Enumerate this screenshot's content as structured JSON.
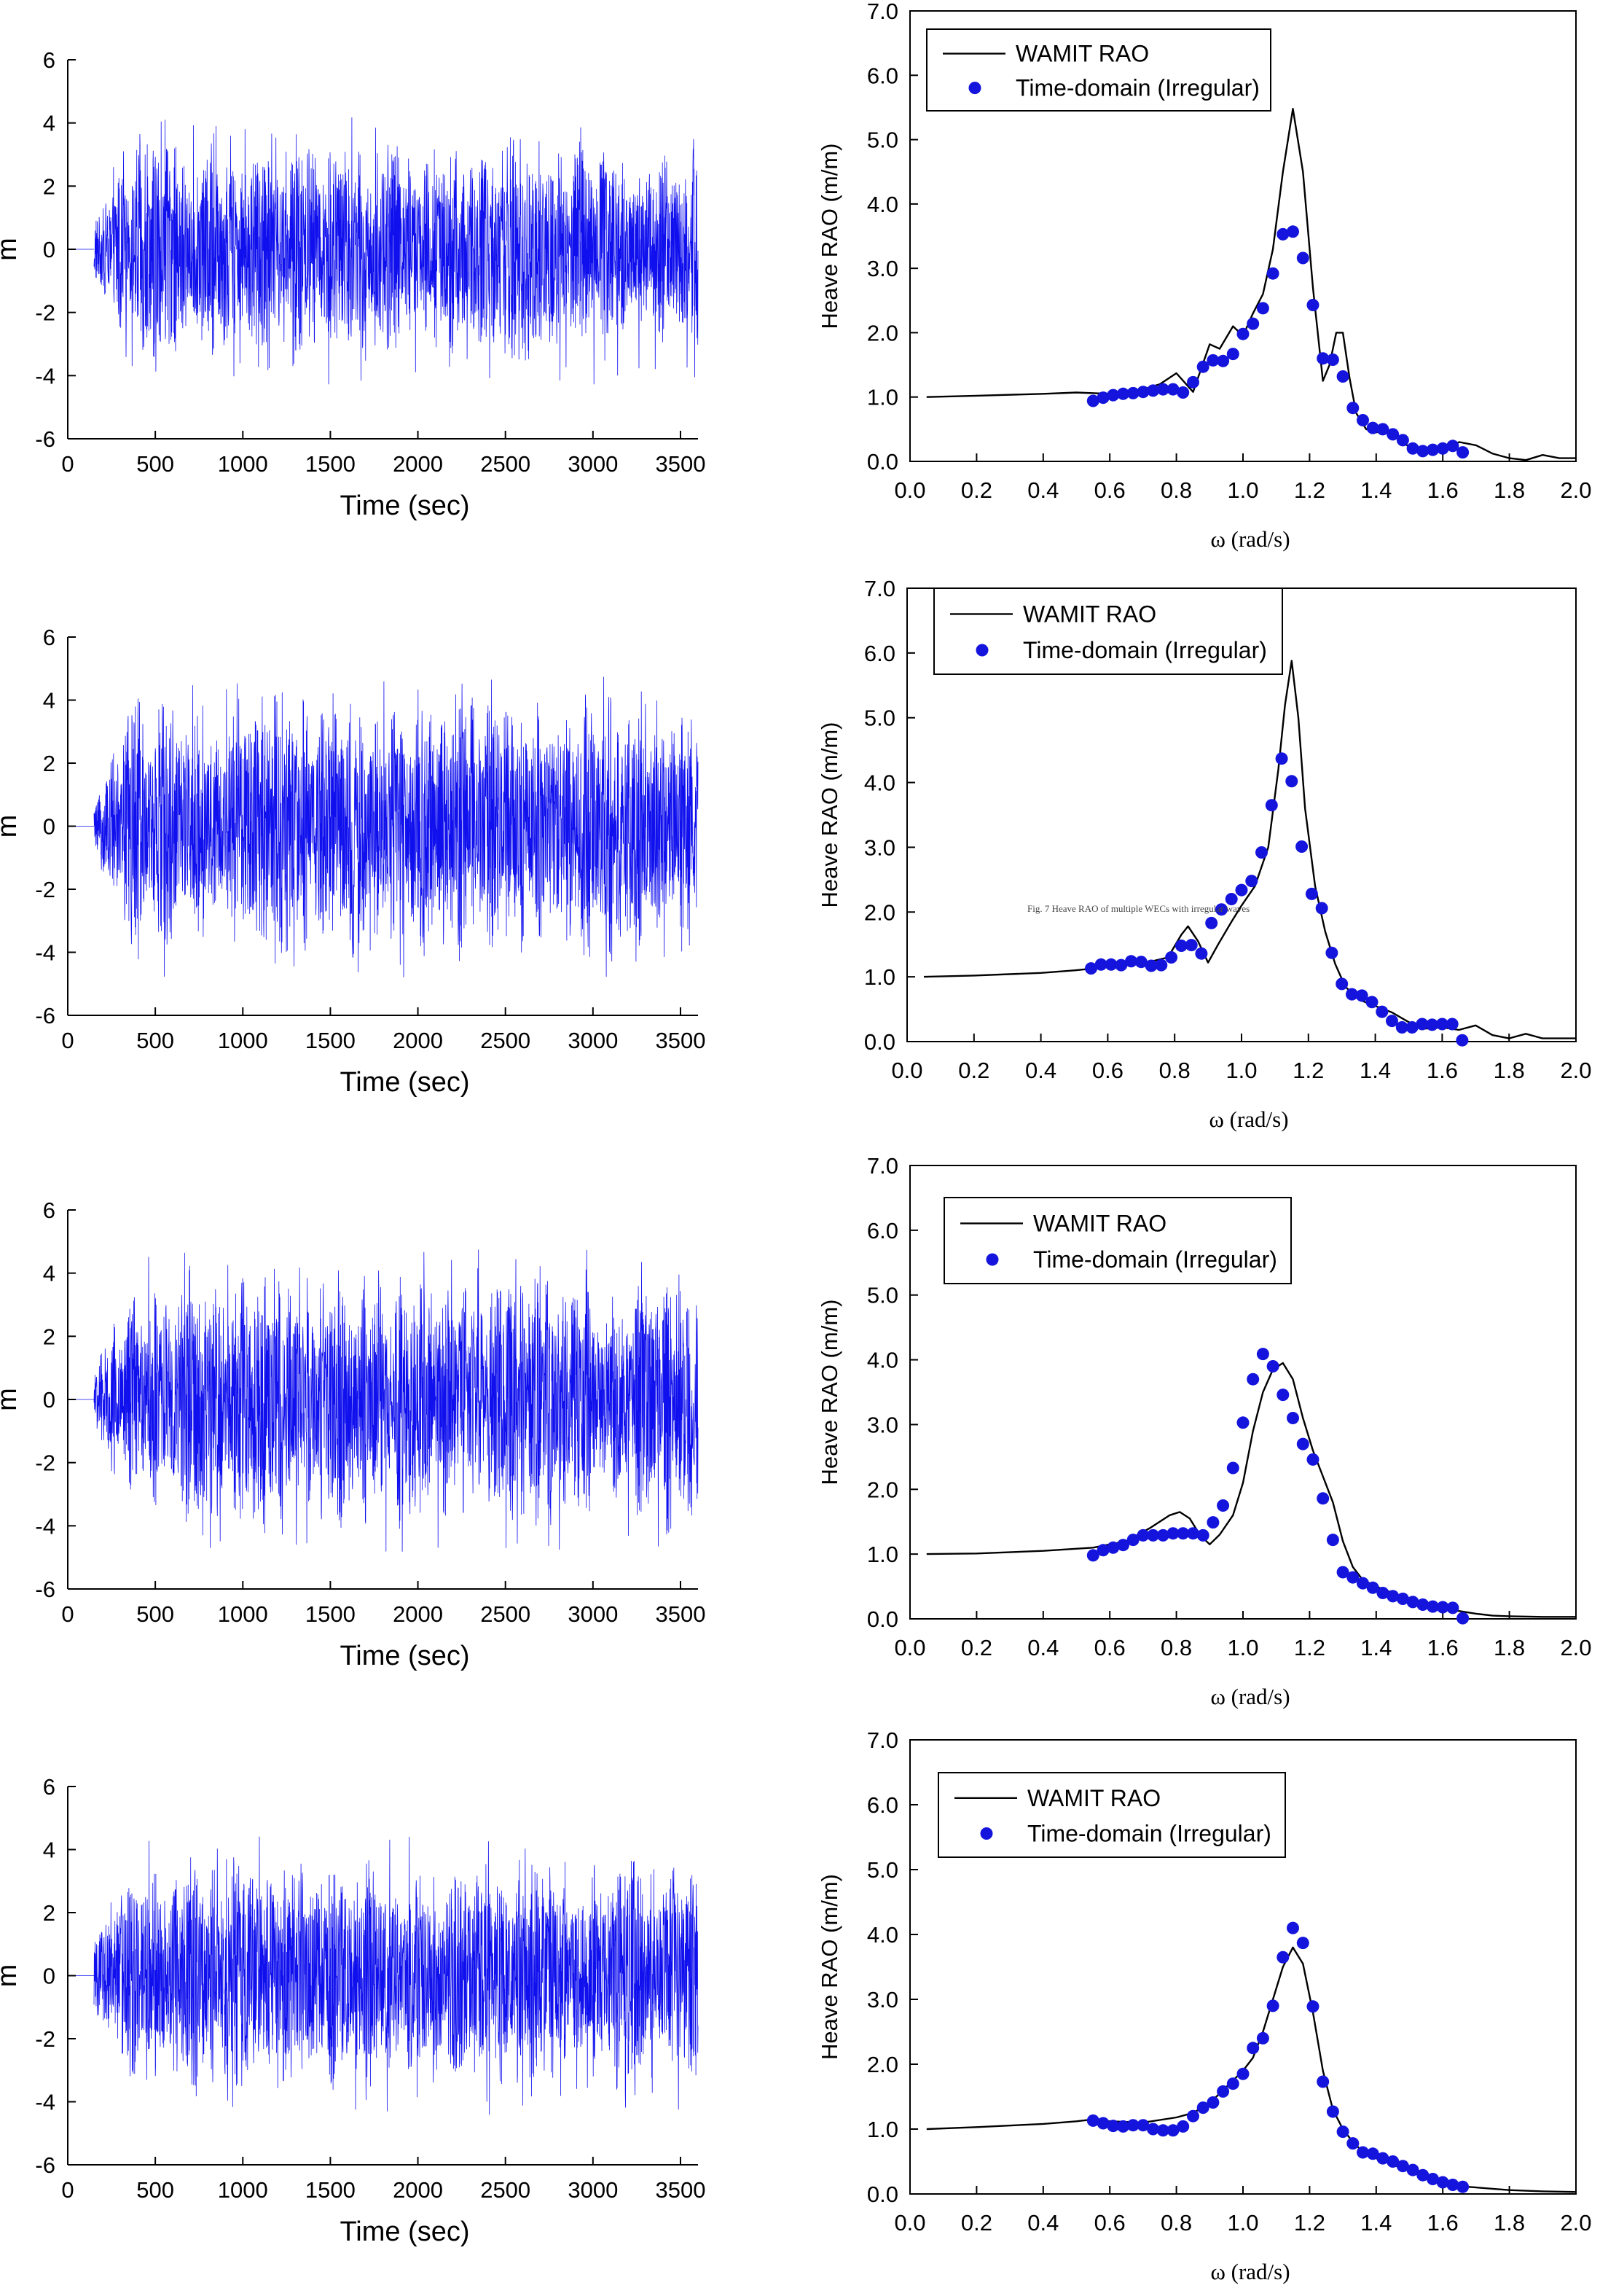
{
  "colors": {
    "time_series": "#1010ee",
    "rao_points": "#1414dd",
    "rao_line": "#000000",
    "axis": "#000000"
  },
  "overlay_caption": "Fig. 7 Heave RAO of multiple WECs with irregular waves",
  "chart_data": [
    {
      "type": "line",
      "panel": "time-series-1",
      "xlabel": "Time (sec)",
      "ylabel": "m",
      "xlim": [
        0,
        3600
      ],
      "ylim": [
        -6,
        6
      ],
      "xticks": [
        "0",
        "500",
        "1000",
        "1500",
        "2000",
        "2500",
        "3000",
        "3500"
      ],
      "yticks": [
        "6",
        "4",
        "2",
        "0",
        "-2",
        "-4",
        "-6"
      ],
      "amplitude_envelope": {
        "typical_peak": 3.8,
        "max_peak": 4.4,
        "min_trough": -4.3
      },
      "dense_signal": true
    },
    {
      "type": "line",
      "panel": "time-series-2",
      "xlabel": "Time (sec)",
      "ylabel": "m",
      "xlim": [
        0,
        3600
      ],
      "ylim": [
        -6,
        6
      ],
      "xticks": [
        "0",
        "500",
        "1000",
        "1500",
        "2000",
        "2500",
        "3000",
        "3500"
      ],
      "yticks": [
        "6",
        "4",
        "2",
        "0",
        "-2",
        "-4",
        "-6"
      ],
      "amplitude_envelope": {
        "typical_peak": 4.3,
        "max_peak": 5.1,
        "min_trough": -4.8
      },
      "dense_signal": true
    },
    {
      "type": "line",
      "panel": "time-series-3",
      "xlabel": "Time (sec)",
      "ylabel": "m",
      "xlim": [
        0,
        3600
      ],
      "ylim": [
        -6,
        6
      ],
      "xticks": [
        "0",
        "500",
        "1000",
        "1500",
        "2000",
        "2500",
        "3000",
        "3500"
      ],
      "yticks": [
        "6",
        "4",
        "2",
        "0",
        "-2",
        "-4",
        "-6"
      ],
      "amplitude_envelope": {
        "typical_peak": 4.2,
        "max_peak": 4.9,
        "min_trough": -5.1
      },
      "dense_signal": true
    },
    {
      "type": "line",
      "panel": "time-series-4",
      "xlabel": "Time (sec)",
      "ylabel": "m",
      "xlim": [
        0,
        3600
      ],
      "ylim": [
        -6,
        6
      ],
      "xticks": [
        "0",
        "500",
        "1000",
        "1500",
        "2000",
        "2500",
        "3000",
        "3500"
      ],
      "yticks": [
        "6",
        "4",
        "2",
        "0",
        "-2",
        "-4",
        "-6"
      ],
      "amplitude_envelope": {
        "typical_peak": 3.9,
        "max_peak": 4.9,
        "min_trough": -5.2
      },
      "dense_signal": true
    },
    {
      "type": "line",
      "panel": "rao-1",
      "xlabel": "ω (rad/s)",
      "ylabel": "Heave RAO (m/m)",
      "xlim": [
        0,
        2.0
      ],
      "ylim": [
        0,
        7.0
      ],
      "xticks": [
        "0.0",
        "0.2",
        "0.4",
        "0.6",
        "0.8",
        "1.0",
        "1.2",
        "1.4",
        "1.6",
        "1.8",
        "2.0"
      ],
      "yticks": [
        "0.0",
        "1.0",
        "2.0",
        "3.0",
        "4.0",
        "5.0",
        "6.0",
        "7.0"
      ],
      "legend": [
        "WAMIT RAO",
        "Time-domain (Irregular)"
      ],
      "legend_position": "top-left",
      "series": [
        {
          "name": "WAMIT RAO",
          "style": "line",
          "x": [
            0.05,
            0.2,
            0.4,
            0.5,
            0.6,
            0.7,
            0.75,
            0.8,
            0.85,
            0.9,
            0.93,
            0.97,
            1.0,
            1.03,
            1.06,
            1.09,
            1.12,
            1.15,
            1.18,
            1.21,
            1.24,
            1.26,
            1.28,
            1.3,
            1.32,
            1.34,
            1.37,
            1.4,
            1.43,
            1.46,
            1.5,
            1.55,
            1.6,
            1.65,
            1.7,
            1.75,
            1.8,
            1.85,
            1.9,
            1.95,
            2.0
          ],
          "y": [
            1.0,
            1.02,
            1.05,
            1.07,
            1.05,
            1.12,
            1.2,
            1.37,
            1.08,
            1.82,
            1.75,
            2.1,
            1.95,
            2.3,
            2.6,
            3.3,
            4.5,
            5.48,
            4.5,
            2.7,
            1.25,
            1.5,
            2.0,
            2.0,
            1.3,
            0.75,
            0.5,
            0.45,
            0.5,
            0.38,
            0.22,
            0.18,
            0.2,
            0.3,
            0.25,
            0.12,
            0.05,
            0.02,
            0.1,
            0.05,
            0.05
          ]
        },
        {
          "name": "Time-domain (Irregular)",
          "style": "points",
          "x": [
            0.55,
            0.58,
            0.61,
            0.64,
            0.67,
            0.7,
            0.73,
            0.76,
            0.79,
            0.82,
            0.85,
            0.88,
            0.91,
            0.94,
            0.97,
            1.0,
            1.03,
            1.06,
            1.09,
            1.12,
            1.15,
            1.18,
            1.21,
            1.24,
            1.27,
            1.3,
            1.33,
            1.36,
            1.39,
            1.42,
            1.45,
            1.48,
            1.51,
            1.54,
            1.57,
            1.6,
            1.63,
            1.66
          ],
          "y": [
            0.94,
            0.99,
            1.03,
            1.05,
            1.06,
            1.08,
            1.1,
            1.12,
            1.12,
            1.07,
            1.23,
            1.47,
            1.57,
            1.56,
            1.67,
            1.98,
            2.14,
            2.38,
            2.92,
            3.53,
            3.57,
            3.16,
            2.43,
            1.6,
            1.58,
            1.32,
            0.83,
            0.64,
            0.52,
            0.5,
            0.42,
            0.33,
            0.2,
            0.16,
            0.18,
            0.2,
            0.24,
            0.14
          ]
        }
      ]
    },
    {
      "type": "line",
      "panel": "rao-2",
      "xlabel": "ω (rad/s)",
      "ylabel": "Heave RAO (m/m)",
      "xlim": [
        0,
        2.0
      ],
      "ylim": [
        0,
        7.0
      ],
      "xticks": [
        "0.0",
        "0.2",
        "0.4",
        "0.6",
        "0.8",
        "1.0",
        "1.2",
        "1.4",
        "1.6",
        "1.8",
        "2.0"
      ],
      "yticks": [
        "0.0",
        "1.0",
        "2.0",
        "3.0",
        "4.0",
        "5.0",
        "6.0",
        "7.0"
      ],
      "legend": [
        "WAMIT RAO",
        "Time-domain (Irregular)"
      ],
      "legend_position": "top-left",
      "series": [
        {
          "name": "WAMIT RAO",
          "style": "line",
          "x": [
            0.05,
            0.2,
            0.4,
            0.5,
            0.6,
            0.7,
            0.78,
            0.82,
            0.84,
            0.87,
            0.9,
            0.93,
            0.97,
            1.0,
            1.04,
            1.08,
            1.11,
            1.13,
            1.15,
            1.17,
            1.19,
            1.22,
            1.25,
            1.28,
            1.31,
            1.35,
            1.4,
            1.45,
            1.5,
            1.55,
            1.6,
            1.65,
            1.7,
            1.75,
            1.8,
            1.85,
            1.9,
            2.0
          ],
          "y": [
            1.0,
            1.02,
            1.06,
            1.1,
            1.15,
            1.2,
            1.3,
            1.65,
            1.78,
            1.55,
            1.22,
            1.5,
            1.85,
            2.1,
            2.4,
            3.0,
            4.2,
            5.2,
            5.88,
            5.0,
            3.6,
            2.4,
            1.7,
            1.2,
            0.85,
            0.65,
            0.55,
            0.45,
            0.3,
            0.2,
            0.22,
            0.18,
            0.25,
            0.1,
            0.05,
            0.12,
            0.05,
            0.05
          ]
        },
        {
          "name": "Time-domain (Irregular)",
          "style": "points",
          "x": [
            0.55,
            0.58,
            0.61,
            0.64,
            0.67,
            0.7,
            0.73,
            0.76,
            0.79,
            0.82,
            0.85,
            0.88,
            0.91,
            0.94,
            0.97,
            1.0,
            1.03,
            1.06,
            1.09,
            1.12,
            1.15,
            1.18,
            1.21,
            1.24,
            1.27,
            1.3,
            1.33,
            1.36,
            1.39,
            1.42,
            1.45,
            1.48,
            1.51,
            1.54,
            1.57,
            1.6,
            1.63,
            1.66
          ],
          "y": [
            1.13,
            1.19,
            1.19,
            1.18,
            1.24,
            1.23,
            1.17,
            1.18,
            1.3,
            1.48,
            1.49,
            1.36,
            1.83,
            2.04,
            2.2,
            2.34,
            2.48,
            2.92,
            3.65,
            4.37,
            4.02,
            3.01,
            2.28,
            2.06,
            1.37,
            0.89,
            0.73,
            0.71,
            0.61,
            0.46,
            0.32,
            0.22,
            0.22,
            0.27,
            0.26,
            0.27,
            0.27,
            0.02
          ]
        }
      ]
    },
    {
      "type": "line",
      "panel": "rao-3",
      "xlabel": "ω (rad/s)",
      "ylabel": "Heave RAO (m/m)",
      "xlim": [
        0,
        2.0
      ],
      "ylim": [
        0,
        7.0
      ],
      "xticks": [
        "0.0",
        "0.2",
        "0.4",
        "0.6",
        "0.8",
        "1.0",
        "1.2",
        "1.4",
        "1.6",
        "1.8",
        "2.0"
      ],
      "yticks": [
        "0.0",
        "1.0",
        "2.0",
        "3.0",
        "4.0",
        "5.0",
        "6.0",
        "7.0"
      ],
      "legend": [
        "WAMIT RAO",
        "Time-domain (Irregular)"
      ],
      "legend_position": "top-left",
      "series": [
        {
          "name": "WAMIT RAO",
          "style": "line",
          "x": [
            0.05,
            0.2,
            0.4,
            0.55,
            0.65,
            0.72,
            0.78,
            0.81,
            0.84,
            0.87,
            0.9,
            0.93,
            0.97,
            1.0,
            1.03,
            1.06,
            1.09,
            1.12,
            1.15,
            1.18,
            1.21,
            1.24,
            1.27,
            1.3,
            1.33,
            1.36,
            1.4,
            1.45,
            1.5,
            1.55,
            1.6,
            1.65,
            1.7,
            1.75,
            1.8,
            1.9,
            2.0
          ],
          "y": [
            1.0,
            1.01,
            1.05,
            1.1,
            1.2,
            1.4,
            1.6,
            1.65,
            1.55,
            1.3,
            1.15,
            1.3,
            1.6,
            2.1,
            2.9,
            3.5,
            3.85,
            3.95,
            3.7,
            3.1,
            2.6,
            2.2,
            1.8,
            1.2,
            0.8,
            0.6,
            0.5,
            0.4,
            0.3,
            0.2,
            0.15,
            0.12,
            0.08,
            0.05,
            0.04,
            0.03,
            0.03
          ]
        },
        {
          "name": "Time-domain (Irregular)",
          "style": "points",
          "x": [
            0.55,
            0.58,
            0.61,
            0.64,
            0.67,
            0.7,
            0.73,
            0.76,
            0.79,
            0.82,
            0.85,
            0.88,
            0.91,
            0.94,
            0.97,
            1.0,
            1.03,
            1.06,
            1.09,
            1.12,
            1.15,
            1.18,
            1.21,
            1.24,
            1.27,
            1.3,
            1.33,
            1.36,
            1.39,
            1.42,
            1.45,
            1.48,
            1.51,
            1.54,
            1.57,
            1.6,
            1.63,
            1.66
          ],
          "y": [
            0.98,
            1.06,
            1.1,
            1.14,
            1.22,
            1.29,
            1.29,
            1.29,
            1.32,
            1.32,
            1.32,
            1.29,
            1.49,
            1.75,
            2.33,
            3.03,
            3.7,
            4.09,
            3.9,
            3.46,
            3.1,
            2.7,
            2.46,
            1.86,
            1.22,
            0.72,
            0.64,
            0.55,
            0.48,
            0.4,
            0.35,
            0.31,
            0.26,
            0.22,
            0.19,
            0.18,
            0.17,
            0.01
          ]
        }
      ]
    },
    {
      "type": "line",
      "panel": "rao-4",
      "xlabel": "ω (rad/s)",
      "ylabel": "Heave RAO (m/m)",
      "xlim": [
        0,
        2.0
      ],
      "ylim": [
        0,
        7.0
      ],
      "xticks": [
        "0.0",
        "0.2",
        "0.4",
        "0.6",
        "0.8",
        "1.0",
        "1.2",
        "1.4",
        "1.6",
        "1.8",
        "2.0"
      ],
      "yticks": [
        "0.0",
        "1.0",
        "2.0",
        "3.0",
        "4.0",
        "5.0",
        "6.0",
        "7.0"
      ],
      "legend": [
        "WAMIT RAO",
        "Time-domain (Irregular)"
      ],
      "legend_position": "top-left",
      "series": [
        {
          "name": "WAMIT RAO",
          "style": "line",
          "x": [
            0.05,
            0.2,
            0.4,
            0.5,
            0.55,
            0.6,
            0.7,
            0.8,
            0.85,
            0.9,
            0.95,
            1.0,
            1.03,
            1.06,
            1.09,
            1.12,
            1.15,
            1.18,
            1.21,
            1.24,
            1.27,
            1.3,
            1.33,
            1.36,
            1.4,
            1.45,
            1.5,
            1.55,
            1.6,
            1.65,
            1.7,
            1.75,
            1.8,
            1.9,
            2.0
          ],
          "y": [
            1.0,
            1.03,
            1.08,
            1.12,
            1.15,
            1.12,
            1.1,
            1.18,
            1.25,
            1.4,
            1.65,
            1.9,
            2.1,
            2.5,
            3.0,
            3.5,
            3.8,
            3.55,
            2.8,
            1.9,
            1.3,
            1.0,
            0.8,
            0.65,
            0.55,
            0.45,
            0.35,
            0.25,
            0.18,
            0.12,
            0.1,
            0.08,
            0.06,
            0.04,
            0.03
          ]
        },
        {
          "name": "Time-domain (Irregular)",
          "style": "points",
          "x": [
            0.55,
            0.58,
            0.61,
            0.64,
            0.67,
            0.7,
            0.73,
            0.76,
            0.79,
            0.82,
            0.85,
            0.88,
            0.91,
            0.94,
            0.97,
            1.0,
            1.03,
            1.06,
            1.09,
            1.12,
            1.15,
            1.18,
            1.21,
            1.24,
            1.27,
            1.3,
            1.33,
            1.36,
            1.39,
            1.42,
            1.45,
            1.48,
            1.51,
            1.54,
            1.57,
            1.6,
            1.63,
            1.66
          ],
          "y": [
            1.13,
            1.09,
            1.05,
            1.04,
            1.06,
            1.06,
            1.0,
            0.98,
            0.98,
            1.04,
            1.2,
            1.33,
            1.41,
            1.58,
            1.7,
            1.85,
            2.25,
            2.4,
            2.9,
            3.65,
            4.1,
            3.87,
            2.89,
            1.73,
            1.27,
            0.96,
            0.78,
            0.64,
            0.62,
            0.55,
            0.5,
            0.43,
            0.37,
            0.29,
            0.23,
            0.18,
            0.14,
            0.11
          ]
        }
      ]
    }
  ]
}
